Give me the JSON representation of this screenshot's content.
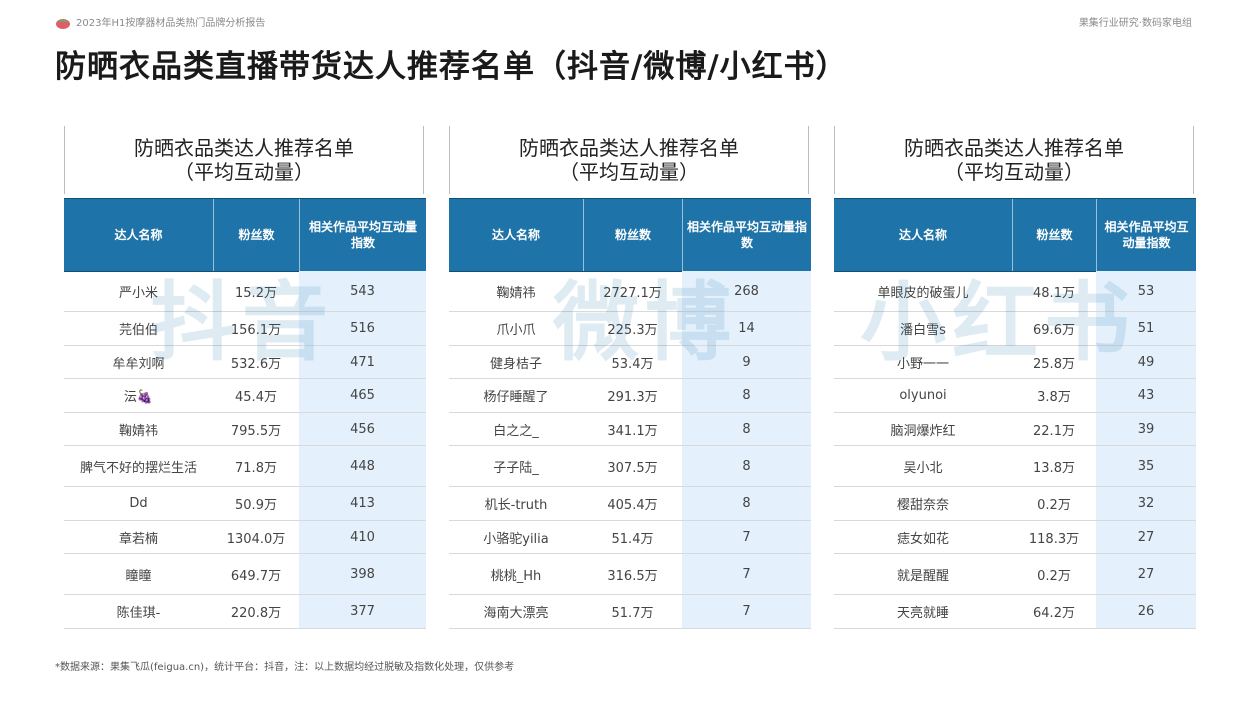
{
  "header": {
    "report_title": "2023年H1按摩器材品类热门品牌分析报告",
    "brand": "果集行业研究·数码家电组"
  },
  "title": "防晒衣品类直播带货达人推荐名单（抖音/微博/小红书）",
  "panels": [
    {
      "title_line1": "防晒衣品类达人推荐名单",
      "title_line2": "（平均互动量）",
      "watermark": "抖音",
      "headers": [
        "达人名称",
        "粉丝数",
        "相关作品平均互动量指数"
      ],
      "rows": [
        [
          "严小米",
          "15.2万",
          "543"
        ],
        [
          "芫伯伯",
          "156.1万",
          "516"
        ],
        [
          "牟牟刘啊",
          "532.6万",
          "471"
        ],
        [
          "沄🍇",
          "45.4万",
          "465"
        ],
        [
          "鞠婧祎",
          "795.5万",
          "456"
        ],
        [
          "脾气不好的摆烂生活",
          "71.8万",
          "448"
        ],
        [
          "Dd",
          "50.9万",
          "413"
        ],
        [
          "章若楠",
          "1304.0万",
          "410"
        ],
        [
          "瞳瞳",
          "649.7万",
          "398"
        ],
        [
          "陈佳琪-",
          "220.8万",
          "377"
        ]
      ]
    },
    {
      "title_line1": "防晒衣品类达人推荐名单",
      "title_line2": "（平均互动量）",
      "watermark": "微博",
      "headers": [
        "达人名称",
        "粉丝数",
        "相关作品平均互动量指数"
      ],
      "rows": [
        [
          "鞠婧祎",
          "2727.1万",
          "268"
        ],
        [
          "爪小爪",
          "225.3万",
          "14"
        ],
        [
          "健身桔子",
          "53.4万",
          "9"
        ],
        [
          "杨仔睡醒了",
          "291.3万",
          "8"
        ],
        [
          "白之之_",
          "341.1万",
          "8"
        ],
        [
          "子子陆_",
          "307.5万",
          "8"
        ],
        [
          "机长-truth",
          "405.4万",
          "8"
        ],
        [
          "小骆驼yilia",
          "51.4万",
          "7"
        ],
        [
          "桃桃_Hh",
          "316.5万",
          "7"
        ],
        [
          "海南大漂亮",
          "51.7万",
          "7"
        ]
      ]
    },
    {
      "title_line1": "防晒衣品类达人推荐名单",
      "title_line2": "（平均互动量）",
      "watermark": "小红书",
      "headers": [
        "达人名称",
        "粉丝数",
        "相关作品平均互动量指数"
      ],
      "rows": [
        [
          "单眼皮的破蛋儿",
          "48.1万",
          "53"
        ],
        [
          "潘白雪s",
          "69.6万",
          "51"
        ],
        [
          "小野一一",
          "25.8万",
          "49"
        ],
        [
          "olyunoi",
          "3.8万",
          "43"
        ],
        [
          "脑洞爆炸红",
          "22.1万",
          "39"
        ],
        [
          "吴小北",
          "13.8万",
          "35"
        ],
        [
          "樱甜奈奈",
          "0.2万",
          "32"
        ],
        [
          "痣女如花",
          "118.3万",
          "27"
        ],
        [
          "就是醒醒",
          "0.2万",
          "27"
        ],
        [
          "天亮就睡",
          "64.2万",
          "26"
        ]
      ]
    }
  ],
  "footnote": "*数据来源：果集飞瓜(feigua.cn)，统计平台：抖音，注：以上数据均经过脱敏及指数化处理，仅供参考"
}
